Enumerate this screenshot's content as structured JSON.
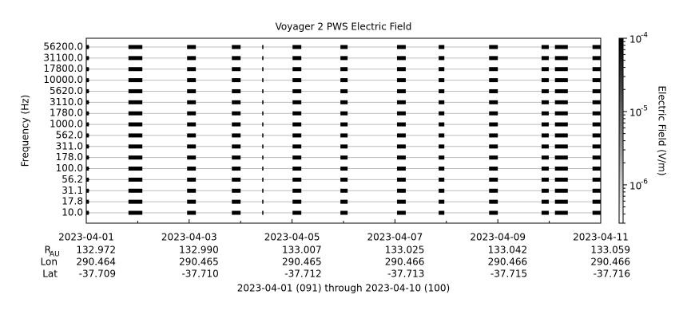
{
  "chart_data": {
    "type": "spectrogram",
    "title": "Voyager 2 PWS Electric Field",
    "y_label": "Frequency (Hz)",
    "channels": [
      "10.0",
      "17.8",
      "31.1",
      "56.2",
      "100.0",
      "178.0",
      "311.0",
      "562.0",
      "1000.0",
      "1780.0",
      "3110.0",
      "5620.0",
      "10000.0",
      "17800.0",
      "31100.0",
      "56200.0"
    ],
    "xlim": [
      91,
      101
    ],
    "xticks": [
      {
        "value": 91,
        "label": "2023-04-01"
      },
      {
        "value": 93,
        "label": "2023-04-03"
      },
      {
        "value": 95,
        "label": "2023-04-05"
      },
      {
        "value": 97,
        "label": "2023-04-07"
      },
      {
        "value": 99,
        "label": "2023-04-09"
      },
      {
        "value": 101,
        "label": "2023-04-11"
      }
    ],
    "x_label": "2023-04-01 (091) through 2023-04-10 (100)",
    "ephemeris": [
      {
        "label": "R",
        "sub": "AU",
        "values": [
          "132.972",
          "132.990",
          "133.007",
          "133.025",
          "133.042",
          "133.059"
        ]
      },
      {
        "label": "Lon",
        "values": [
          "290.464",
          "290.465",
          "290.465",
          "290.466",
          "290.466",
          "290.466"
        ]
      },
      {
        "label": "Lat",
        "values": [
          "-37.709",
          "-37.710",
          "-37.712",
          "-37.713",
          "-37.715",
          "-37.716"
        ]
      }
    ],
    "segments": [
      {
        "start": 91.0,
        "end": 91.05,
        "value": 0.0001
      },
      {
        "start": 91.82,
        "end": 92.09,
        "value": 0.0001
      },
      {
        "start": 92.96,
        "end": 93.13,
        "value": 0.0001
      },
      {
        "start": 93.83,
        "end": 94.0,
        "value": 0.0001
      },
      {
        "start": 94.42,
        "end": 94.44,
        "value": 0.0001
      },
      {
        "start": 95.01,
        "end": 95.18,
        "value": 0.0001
      },
      {
        "start": 95.94,
        "end": 96.08,
        "value": 0.0001
      },
      {
        "start": 97.04,
        "end": 97.21,
        "value": 0.0001
      },
      {
        "start": 97.85,
        "end": 97.96,
        "value": 0.0001
      },
      {
        "start": 98.83,
        "end": 99.0,
        "value": 0.0001
      },
      {
        "start": 99.85,
        "end": 99.99,
        "value": 0.0001
      },
      {
        "start": 100.11,
        "end": 100.36,
        "value": 0.0001
      },
      {
        "start": 100.84,
        "end": 101.0,
        "value": 0.0001
      }
    ],
    "colorbar_label": "Electric Field (V/m)",
    "zlim": [
      3e-07,
      0.0001
    ],
    "zscale": "log",
    "zticks": [
      {
        "value": 0.0001,
        "base": "10",
        "exponent": "-4"
      },
      {
        "value": 1e-05,
        "base": "10",
        "exponent": "-5"
      },
      {
        "value": 1e-06,
        "base": "10",
        "exponent": "-6"
      }
    ]
  }
}
